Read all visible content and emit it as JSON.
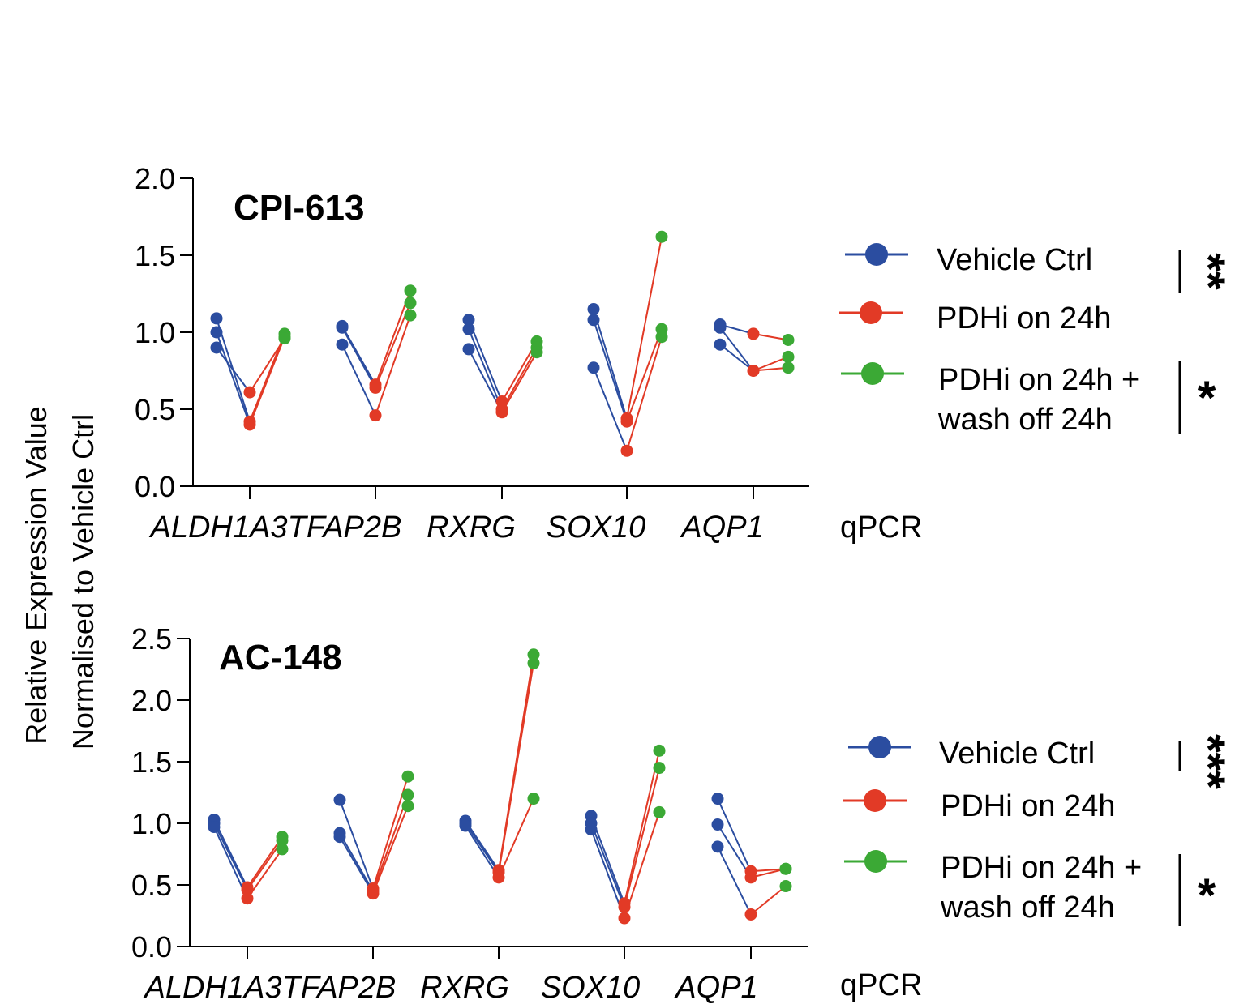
{
  "y_axis_label": [
    "Relative Expression Value",
    "Normalised to Vehicle Ctrl"
  ],
  "colors": {
    "vehicle": "#2b4da0",
    "pdhi": "#e23a26",
    "wash": "#3ba935",
    "axis": "#000000"
  },
  "legend": {
    "vehicle": "Vehicle Ctrl",
    "pdhi": "PDHi on 24h",
    "wash_line1": "PDHi on 24h +",
    "wash_line2": "wash off 24h"
  },
  "chart_data": [
    {
      "type": "scatter",
      "title": "CPI-613",
      "categories": [
        "ALDH1A3",
        "TFAP2B",
        "RXRG",
        "SOX10",
        "AQP1"
      ],
      "category_suffix": "qPCR",
      "ylim": [
        0,
        2.0
      ],
      "yticks": [
        "0.0",
        "0.5",
        "1.0",
        "1.5",
        "2.0"
      ],
      "groups": [
        "Vehicle Ctrl",
        "PDHi on 24h",
        "PDHi on 24h + wash off 24h"
      ],
      "values": {
        "ALDH1A3": {
          "vehicle": [
            1.09,
            1.0,
            0.9
          ],
          "pdhi": [
            0.42,
            0.4,
            0.61
          ],
          "wash": [
            0.99,
            0.97,
            0.96
          ]
        },
        "TFAP2B": {
          "vehicle": [
            1.04,
            1.03,
            0.92
          ],
          "pdhi": [
            0.66,
            0.64,
            0.46
          ],
          "wash": [
            1.27,
            1.19,
            1.11
          ]
        },
        "RXRG": {
          "vehicle": [
            1.08,
            1.02,
            0.89
          ],
          "pdhi": [
            0.55,
            0.5,
            0.48
          ],
          "wash": [
            0.94,
            0.9,
            0.87
          ]
        },
        "SOX10": {
          "vehicle": [
            1.15,
            1.08,
            0.77
          ],
          "pdhi": [
            0.44,
            0.42,
            0.23
          ],
          "wash": [
            1.62,
            1.02,
            0.97
          ]
        },
        "AQP1": {
          "vehicle": [
            1.05,
            1.03,
            0.92
          ],
          "pdhi": [
            0.99,
            0.75,
            0.75
          ],
          "wash": [
            0.95,
            0.84,
            0.77
          ]
        }
      },
      "significance": [
        "**",
        "*"
      ]
    },
    {
      "type": "scatter",
      "title": "AC-148",
      "categories": [
        "ALDH1A3",
        "TFAP2B",
        "RXRG",
        "SOX10",
        "AQP1"
      ],
      "category_suffix": "qPCR",
      "ylim": [
        0,
        2.5
      ],
      "yticks": [
        "0.0",
        "0.5",
        "1.0",
        "1.5",
        "2.0",
        "2.5"
      ],
      "groups": [
        "Vehicle Ctrl",
        "PDHi on 24h",
        "PDHi on 24h + wash off 24h"
      ],
      "values": {
        "ALDH1A3": {
          "vehicle": [
            1.03,
            1.0,
            0.97
          ],
          "pdhi": [
            0.48,
            0.46,
            0.39
          ],
          "wash": [
            0.89,
            0.86,
            0.79
          ]
        },
        "TFAP2B": {
          "vehicle": [
            1.19,
            0.92,
            0.89
          ],
          "pdhi": [
            0.47,
            0.45,
            0.43
          ],
          "wash": [
            1.38,
            1.23,
            1.14
          ]
        },
        "RXRG": {
          "vehicle": [
            1.02,
            1.0,
            0.98
          ],
          "pdhi": [
            0.62,
            0.6,
            0.56
          ],
          "wash": [
            2.37,
            2.3,
            1.2
          ]
        },
        "SOX10": {
          "vehicle": [
            1.06,
            1.0,
            0.95
          ],
          "pdhi": [
            0.35,
            0.32,
            0.23
          ],
          "wash": [
            1.59,
            1.45,
            1.09
          ]
        },
        "AQP1": {
          "vehicle": [
            1.2,
            0.99,
            0.81
          ],
          "pdhi": [
            0.61,
            0.56,
            0.26
          ],
          "wash": [
            0.63,
            0.63,
            0.49
          ]
        }
      },
      "significance": [
        "***",
        "*"
      ]
    }
  ]
}
